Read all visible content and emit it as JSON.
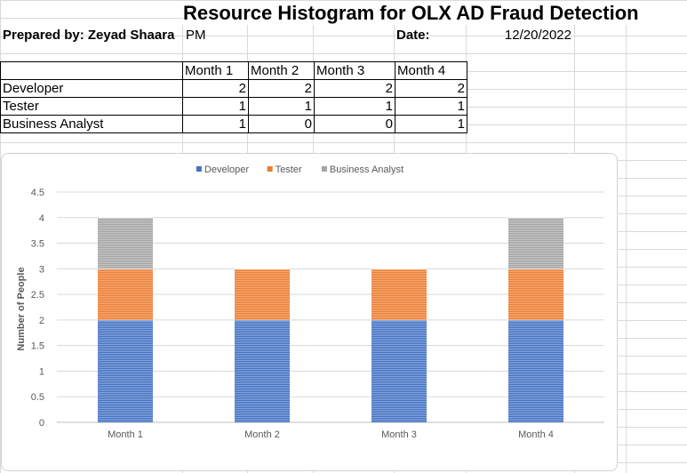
{
  "sheet": {
    "title": "Resource Histogram for OLX AD Fraud Detection",
    "prepared_by_label": "Prepared by: Zeyad Shaara",
    "prepared_by_role": "PM",
    "date_label": "Date:",
    "date_value": "12/20/2022"
  },
  "table": {
    "headers": [
      "",
      "Month 1",
      "Month 2",
      "Month 3",
      "Month 4"
    ],
    "rows": [
      {
        "role": "Developer",
        "values": [
          "2",
          "2",
          "2",
          "2"
        ]
      },
      {
        "role": "Tester",
        "values": [
          "1",
          "1",
          "1",
          "1"
        ]
      },
      {
        "role": "Business Analyst",
        "values": [
          "1",
          "0",
          "0",
          "1"
        ]
      }
    ]
  },
  "chart_data": {
    "type": "bar",
    "stacked": true,
    "categories": [
      "Month 1",
      "Month 2",
      "Month 3",
      "Month 4"
    ],
    "series": [
      {
        "name": "Developer",
        "values": [
          2,
          2,
          2,
          2
        ],
        "color": "#4472c4"
      },
      {
        "name": "Tester",
        "values": [
          1,
          1,
          1,
          1
        ],
        "color": "#ed7d31"
      },
      {
        "name": "Business Analyst",
        "values": [
          1,
          0,
          0,
          1
        ],
        "color": "#a5a5a5"
      }
    ],
    "ylabel": "Number of People",
    "ylim": [
      0,
      4.5
    ],
    "yticks": [
      "0",
      "0.5",
      "1",
      "1.5",
      "2",
      "2.5",
      "3",
      "3.5",
      "4",
      "4.5"
    ],
    "legend_position": "top",
    "grid": true
  }
}
